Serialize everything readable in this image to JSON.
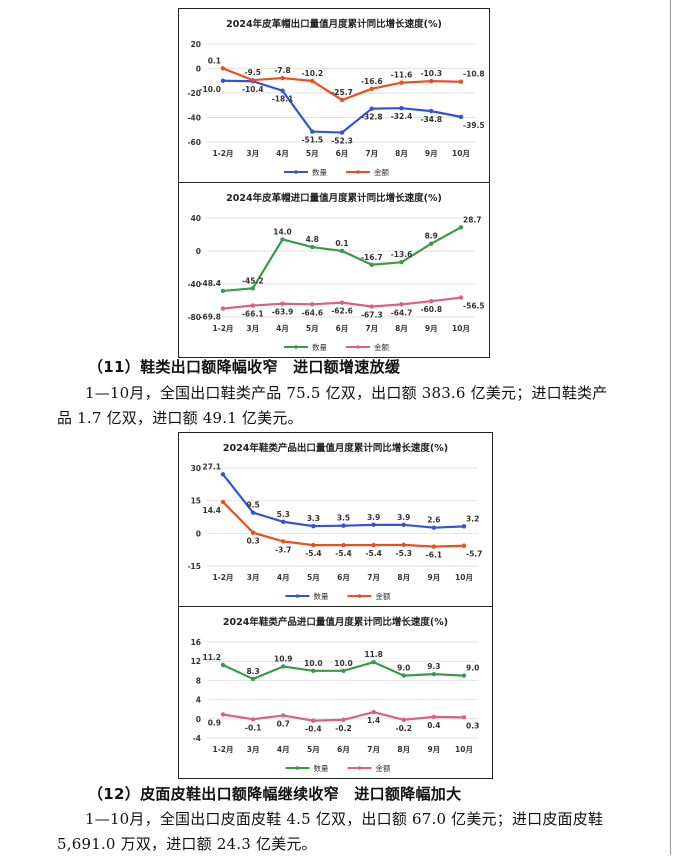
{
  "chart_data": [
    {
      "type": "line",
      "title": "2024年皮革帽出口量值月度累计同比增长速度(%)",
      "categories": [
        "1-2月",
        "3月",
        "4月",
        "5月",
        "6月",
        "7月",
        "8月",
        "9月",
        "10月"
      ],
      "ylim": [
        -60,
        20
      ],
      "yticks": [
        20,
        0,
        -20,
        -40,
        -60
      ],
      "grid": true,
      "legend": "bottom",
      "series": [
        {
          "name": "数量",
          "color": "#2F55D4",
          "values": [
            -10.0,
            -10.4,
            -18.1,
            -51.5,
            -52.3,
            -32.8,
            -32.4,
            -34.8,
            -39.5
          ]
        },
        {
          "name": "金额",
          "color": "#E8501E",
          "values": [
            0.1,
            -9.5,
            -7.8,
            -10.2,
            -25.7,
            -16.6,
            -11.6,
            -10.3,
            -10.8
          ]
        }
      ]
    },
    {
      "type": "line",
      "title": "2024年皮革帽进口量值月度累计同比增长速度(%)",
      "categories": [
        "1-2月",
        "3月",
        "4月",
        "5月",
        "6月",
        "7月",
        "8月",
        "9月",
        "10月"
      ],
      "ylim": [
        -80,
        40
      ],
      "yticks": [
        40,
        0,
        -40,
        -80
      ],
      "grid": true,
      "legend": "bottom",
      "series": [
        {
          "name": "数量",
          "color": "#3A9A45",
          "values": [
            -48.4,
            -45.2,
            14.0,
            4.8,
            0.1,
            -16.7,
            -13.6,
            8.9,
            28.7
          ]
        },
        {
          "name": "金额",
          "color": "#D9608A",
          "values": [
            -69.8,
            -66.1,
            -63.9,
            -64.6,
            -62.6,
            -67.3,
            -64.7,
            -60.8,
            -56.5
          ]
        }
      ]
    },
    {
      "type": "line",
      "title": "2024年鞋类产品出口量值月度累计同比增长速度(%)",
      "categories": [
        "1-2月",
        "3月",
        "4月",
        "5月",
        "6月",
        "7月",
        "8月",
        "9月",
        "10月"
      ],
      "ylim": [
        -15,
        30
      ],
      "yticks": [
        30,
        15,
        0,
        -15
      ],
      "grid": true,
      "legend": "bottom",
      "series": [
        {
          "name": "数量",
          "color": "#2F55D4",
          "values": [
            27.1,
            9.5,
            5.3,
            3.3,
            3.5,
            3.9,
            3.9,
            2.6,
            3.2
          ]
        },
        {
          "name": "金额",
          "color": "#E8501E",
          "values": [
            14.4,
            0.3,
            -3.7,
            -5.4,
            -5.4,
            -5.4,
            -5.3,
            -6.1,
            -5.7
          ]
        }
      ]
    },
    {
      "type": "line",
      "title": "2024年鞋类产品进口量值月度累计同比增长速度(%)",
      "categories": [
        "1-2月",
        "3月",
        "4月",
        "5月",
        "6月",
        "7月",
        "8月",
        "9月",
        "10月"
      ],
      "ylim": [
        -4,
        16
      ],
      "yticks": [
        16,
        12,
        8,
        4,
        0,
        -4
      ],
      "grid": true,
      "legend": "bottom",
      "series": [
        {
          "name": "数量",
          "color": "#3A9A45",
          "values": [
            11.2,
            8.3,
            10.9,
            10.0,
            10.0,
            11.8,
            9.0,
            9.3,
            9.0
          ]
        },
        {
          "name": "金额",
          "color": "#D9608A",
          "values": [
            0.9,
            -0.1,
            0.7,
            -0.4,
            -0.2,
            1.4,
            -0.2,
            0.4,
            0.3
          ]
        }
      ]
    }
  ],
  "section11": {
    "heading": "（11）鞋类出口额降幅收窄　进口额增速放缓",
    "body": "1—10月，全国出口鞋类产品 75.5 亿双，出口额 383.6 亿美元；进口鞋类产品 1.7 亿双，进口额 49.1 亿美元。"
  },
  "section12": {
    "heading": "（12）皮面皮鞋出口额降幅继续收窄　进口额降幅加大",
    "body": "1—10月，全国出口皮面皮鞋 4.5 亿双，出口额 67.0 亿美元；进口皮面皮鞋 5,691.0 万双，进口额 24.3 亿美元。"
  }
}
